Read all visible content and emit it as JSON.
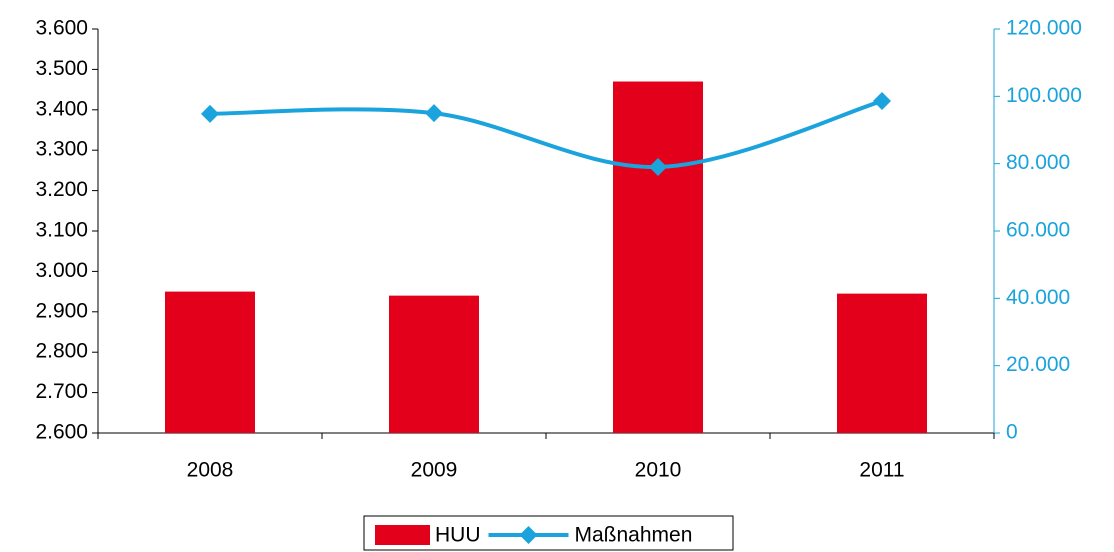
{
  "chart_data": {
    "type": "bar",
    "categories": [
      "2008",
      "2009",
      "2010",
      "2011"
    ],
    "series": [
      {
        "name": "HUU",
        "color": "#e2001a",
        "type": "bar",
        "values": [
          2950,
          2940,
          3470,
          2945
        ]
      },
      {
        "name": "Maßnahmen",
        "color": "#1aa3dc",
        "type": "line",
        "axis": "y2",
        "values": [
          94800,
          95000,
          79000,
          98600
        ]
      }
    ],
    "ylim": [
      2600,
      3600
    ],
    "yticks": [
      {
        "value": 2600,
        "label": "2.600"
      },
      {
        "value": 2700,
        "label": "2.700"
      },
      {
        "value": 2800,
        "label": "2.800"
      },
      {
        "value": 2900,
        "label": "2.900"
      },
      {
        "value": 3000,
        "label": "3.000"
      },
      {
        "value": 3100,
        "label": "3.100"
      },
      {
        "value": 3200,
        "label": "3.200"
      },
      {
        "value": 3300,
        "label": "3.300"
      },
      {
        "value": 3400,
        "label": "3.400"
      },
      {
        "value": 3500,
        "label": "3.500"
      },
      {
        "value": 3600,
        "label": "3.600"
      }
    ],
    "y2lim": [
      0,
      120000
    ],
    "y2ticks": [
      0,
      {
        "value": 20000,
        "label": "20.000"
      },
      {
        "value": 40000,
        "label": "40.000"
      },
      {
        "value": 60000,
        "label": "60.000"
      },
      {
        "value": 80000,
        "label": "80.000"
      },
      {
        "value": 100000,
        "label": "100.000"
      },
      {
        "value": 120000,
        "label": "120.000"
      }
    ],
    "y2color": "#1aa3dc",
    "grid": false,
    "legend": "bottom"
  }
}
